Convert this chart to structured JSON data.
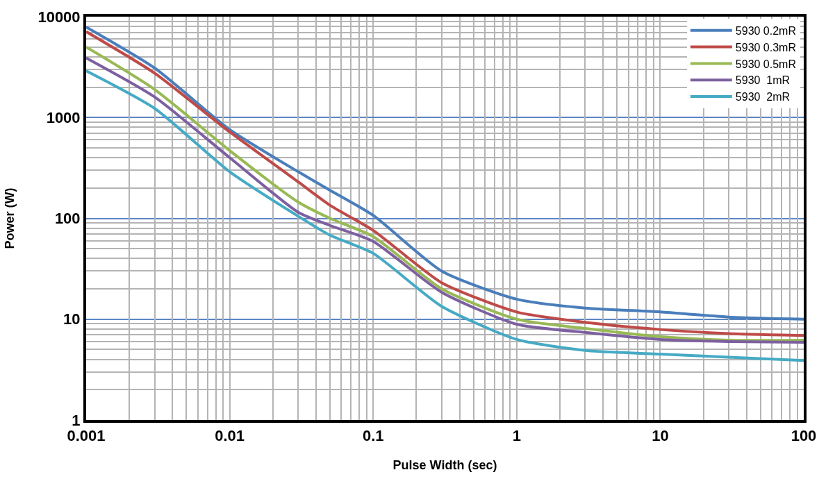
{
  "chart_data": {
    "type": "line",
    "xlabel": "Pulse Width (sec)",
    "ylabel": "Power (W)",
    "log": "xy",
    "grid": true,
    "legend": "top right",
    "line_style": "solid",
    "marker": "none",
    "x": [
      0.001,
      0.003,
      0.01,
      0.03,
      0.05,
      0.1,
      0.3,
      1,
      3,
      10,
      30,
      100
    ],
    "xlim": [
      0.001,
      100
    ],
    "xticks": [
      0.001,
      0.01,
      0.1,
      1,
      10,
      100
    ],
    "ylim": [
      1,
      10000
    ],
    "yticks": [
      1,
      10,
      100,
      1000,
      10000
    ],
    "series": [
      {
        "name": "5930 0.2mR",
        "color": "#4a7ebb",
        "values": [
          7900,
          3100,
          760,
          290,
          190,
          107,
          30,
          15.8,
          12.9,
          11.8,
          10.5,
          10
        ]
      },
      {
        "name": "5930 0.3mR",
        "color": "#be4b48",
        "values": [
          7100,
          2750,
          720,
          230,
          135,
          76,
          23,
          11.8,
          9.3,
          7.9,
          7.2,
          6.9
        ]
      },
      {
        "name": "5930 0.5mR",
        "color": "#98b954",
        "values": [
          5000,
          1900,
          470,
          145,
          100,
          66,
          20,
          10,
          8.1,
          6.7,
          6.2,
          6.2
        ]
      },
      {
        "name": "5930  1mR",
        "color": "#7d60a0",
        "values": [
          3900,
          1600,
          400,
          115,
          85,
          59,
          18.5,
          8.9,
          7.4,
          6.3,
          6.0,
          5.9
        ]
      },
      {
        "name": "5930  2mR",
        "color": "#46aac5",
        "values": [
          2900,
          1230,
          290,
          105,
          68,
          45,
          13.4,
          6.3,
          4.9,
          4.5,
          4.2,
          3.9
        ]
      }
    ]
  }
}
